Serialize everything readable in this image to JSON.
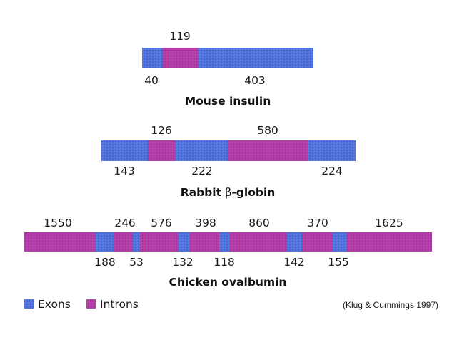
{
  "colors": {
    "exon": "#4f6fd9",
    "intron": "#b03ca6",
    "text": "#1a1a1a"
  },
  "genes": [
    {
      "title": "Mouse insulin",
      "segments": [
        {
          "type": "exon",
          "label": "40"
        },
        {
          "type": "intron",
          "label": "119"
        },
        {
          "type": "exon",
          "label": "403"
        }
      ]
    },
    {
      "title_prefix": "Rabbit ",
      "title_symbol": "β",
      "title_suffix": "-globin",
      "segments": [
        {
          "type": "exon",
          "label": "143"
        },
        {
          "type": "intron",
          "label": "126"
        },
        {
          "type": "exon",
          "label": "222"
        },
        {
          "type": "intron",
          "label": "580"
        },
        {
          "type": "exon",
          "label": "224"
        }
      ]
    },
    {
      "title": "Chicken ovalbumin",
      "segments": [
        {
          "type": "intron",
          "label": "1550"
        },
        {
          "type": "exon",
          "label": "188"
        },
        {
          "type": "intron",
          "label": "246"
        },
        {
          "type": "exon",
          "label": "53"
        },
        {
          "type": "intron",
          "label": "576"
        },
        {
          "type": "exon",
          "label": "132"
        },
        {
          "type": "intron",
          "label": "398"
        },
        {
          "type": "exon",
          "label": "118"
        },
        {
          "type": "intron",
          "label": "860"
        },
        {
          "type": "exon",
          "label": "142"
        },
        {
          "type": "intron",
          "label": "370"
        },
        {
          "type": "exon",
          "label": "155"
        },
        {
          "type": "intron",
          "label": "1625"
        }
      ]
    }
  ],
  "legend": {
    "exons_label": "Exons",
    "introns_label": "Introns"
  },
  "citation": "(Klug & Cummings 1997)"
}
